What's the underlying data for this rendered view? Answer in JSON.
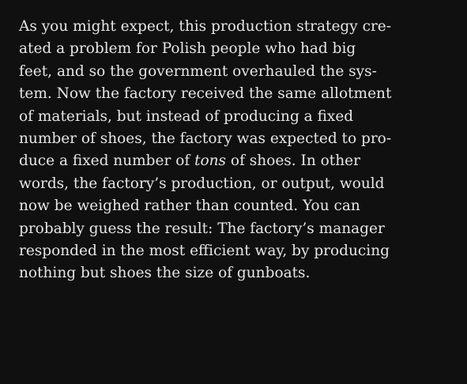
{
  "document": {
    "lines": [
      "As you might expect, this production strategy cre-",
      "ated a problem for Polish people who had big",
      "feet, and so the government overhauled the sys-",
      "tem. Now the factory received the same allotment",
      "of materials, but instead of producing a fixed",
      "number of shoes, the factory was expected to pro-",
      "duce a fixed number of ",
      "words, the factory’s production, or output, would",
      "now be weighed rather than counted. You can",
      "probably guess the result: The factory’s manager",
      "responded in the most efficient way, by producing",
      "nothing but shoes the size of gunboats."
    ],
    "line7_italic": "tons",
    "line7_after": " of shoes. In other"
  },
  "colors": {
    "background": "#101010",
    "text": "#e6e6e6"
  }
}
